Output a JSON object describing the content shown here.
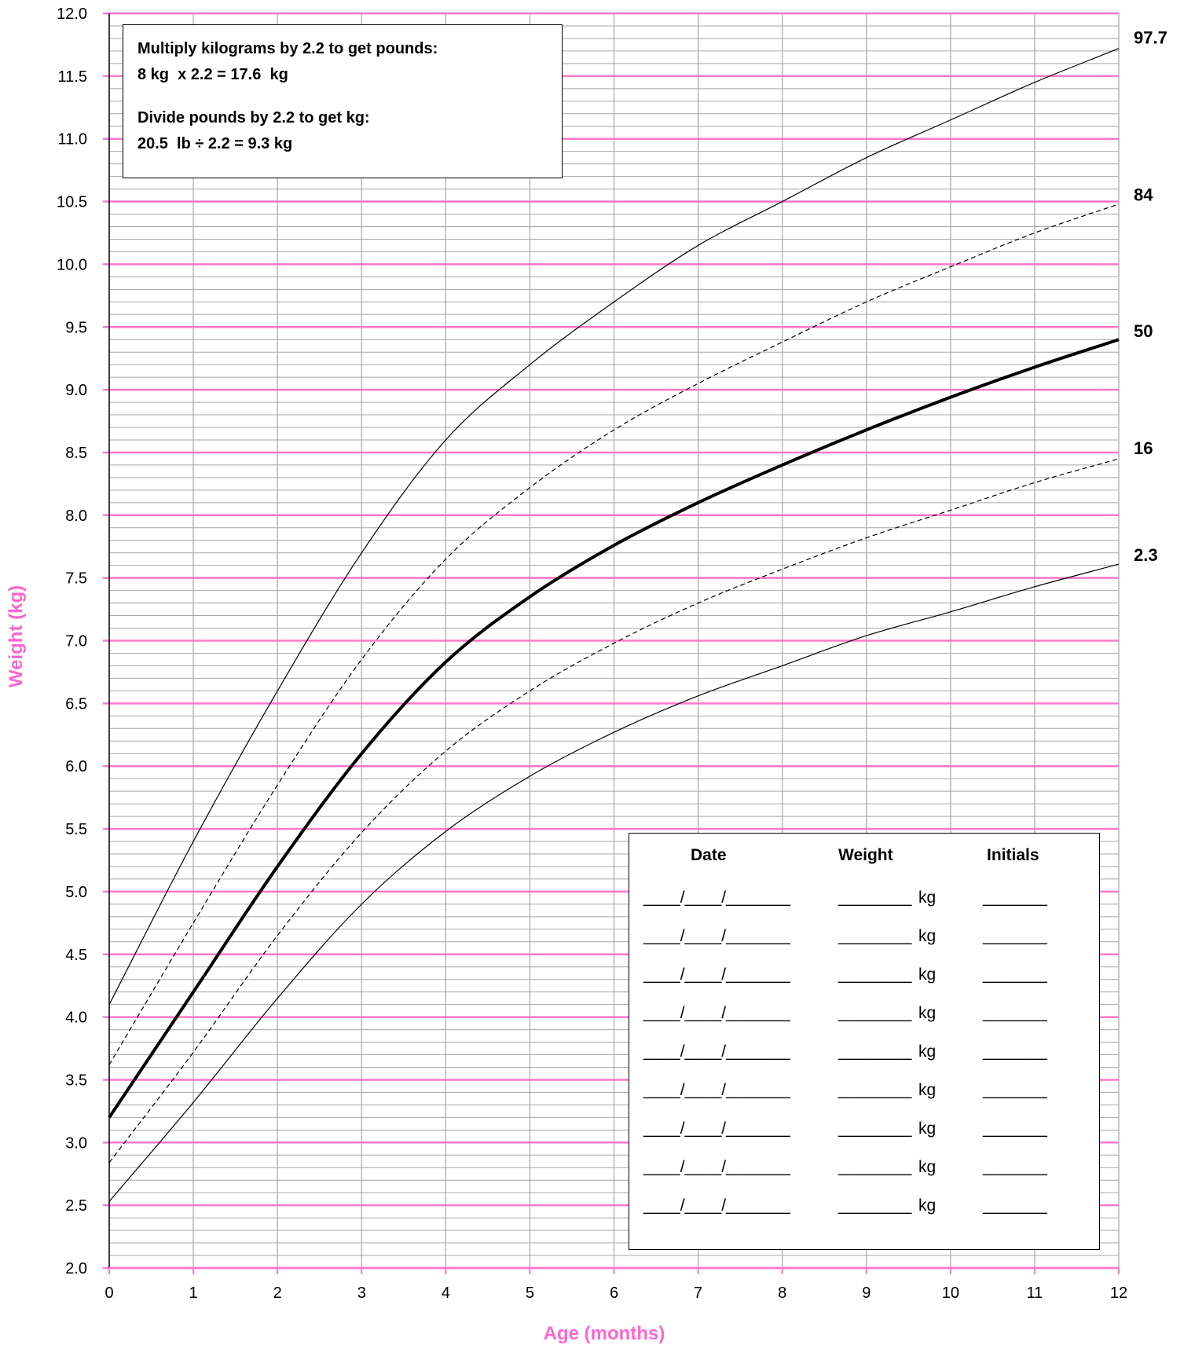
{
  "chart_data": {
    "type": "line",
    "xlabel": "Age (months)",
    "ylabel": "Weight (kg)",
    "xlim": [
      0,
      12
    ],
    "ylim": [
      2.0,
      12.0
    ],
    "x_ticks": [
      "0",
      "1",
      "2",
      "3",
      "4",
      "5",
      "6",
      "7",
      "8",
      "9",
      "10",
      "11",
      "12"
    ],
    "y_ticks": [
      "2.0",
      "2.5",
      "3.0",
      "3.5",
      "4.0",
      "4.5",
      "5.0",
      "5.5",
      "6.0",
      "6.5",
      "7.0",
      "7.5",
      "8.0",
      "8.5",
      "9.0",
      "9.5",
      "10.0",
      "10.5",
      "11.0",
      "11.5",
      "12.0"
    ],
    "grid": "on",
    "x": [
      0,
      1,
      2,
      3,
      4,
      5,
      6,
      7,
      8,
      9,
      10,
      11,
      12
    ],
    "series": [
      {
        "name": "97.7",
        "style": "solid-thin",
        "values": [
          4.1,
          5.4,
          6.6,
          7.7,
          8.6,
          9.2,
          9.7,
          10.15,
          10.5,
          10.85,
          11.15,
          11.45,
          11.72
        ]
      },
      {
        "name": "84",
        "style": "dashed",
        "values": [
          3.62,
          4.75,
          5.85,
          6.85,
          7.65,
          8.22,
          8.68,
          9.05,
          9.38,
          9.7,
          9.98,
          10.25,
          10.48
        ]
      },
      {
        "name": "50",
        "style": "solid-thick",
        "values": [
          3.2,
          4.2,
          5.2,
          6.1,
          6.83,
          7.35,
          7.76,
          8.1,
          8.4,
          8.68,
          8.94,
          9.18,
          9.4
        ]
      },
      {
        "name": "16",
        "style": "dashed",
        "values": [
          2.84,
          3.72,
          4.65,
          5.47,
          6.12,
          6.6,
          6.98,
          7.3,
          7.57,
          7.82,
          8.04,
          8.26,
          8.45
        ]
      },
      {
        "name": "2.3",
        "style": "solid-thin",
        "values": [
          2.53,
          3.32,
          4.15,
          4.9,
          5.48,
          5.92,
          6.27,
          6.56,
          6.8,
          7.04,
          7.23,
          7.43,
          7.61
        ]
      }
    ],
    "colors": {
      "major_grid": "#ff77cc",
      "minor_grid": "#a6a6a6",
      "axis_title": "#ff66cc",
      "curve": "#000000"
    }
  },
  "conversion_box": {
    "line1": "Multiply kilograms by 2.2 to get pounds:",
    "line2": "8 kg  x 2.2 = 17.6  kg",
    "line3": "Divide pounds by 2.2 to get kg:",
    "line4": "20.5  lb ÷ 2.2 = 9.3 kg"
  },
  "weight_log": {
    "headers": {
      "date": "Date",
      "weight": "Weight",
      "initials": "Initials"
    },
    "rows": [
      {
        "date": "____/____/_______",
        "weight": "________",
        "unit": "kg",
        "initials": "_______"
      },
      {
        "date": "____/____/_______",
        "weight": "________",
        "unit": "kg",
        "initials": "_______"
      },
      {
        "date": "____/____/_______",
        "weight": "________",
        "unit": "kg",
        "initials": "_______"
      },
      {
        "date": "____/____/_______",
        "weight": "________",
        "unit": "kg",
        "initials": "_______"
      },
      {
        "date": "____/____/_______",
        "weight": "________",
        "unit": "kg",
        "initials": "_______"
      },
      {
        "date": "____/____/_______",
        "weight": "________",
        "unit": "kg",
        "initials": "_______"
      },
      {
        "date": "____/____/_______",
        "weight": "________",
        "unit": "kg",
        "initials": "_______"
      },
      {
        "date": "____/____/_______",
        "weight": "________",
        "unit": "kg",
        "initials": "_______"
      },
      {
        "date": "____/____/_______",
        "weight": "________",
        "unit": "kg",
        "initials": "_______"
      }
    ]
  }
}
